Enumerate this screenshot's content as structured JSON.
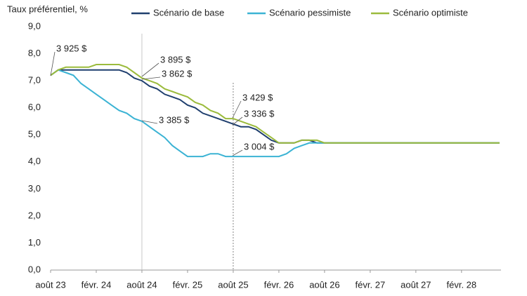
{
  "chart_data": {
    "type": "line",
    "y_axis_label": "Taux préférentiel, %",
    "categories": [
      "août 23",
      null,
      null,
      null,
      null,
      null,
      "févr. 24",
      null,
      null,
      null,
      null,
      null,
      "août 24",
      null,
      null,
      null,
      null,
      null,
      "févr. 25",
      null,
      null,
      null,
      null,
      null,
      "août 25",
      null,
      null,
      null,
      null,
      null,
      "févr. 26",
      null,
      null,
      null,
      null,
      null,
      "août 26",
      null,
      null,
      null,
      null,
      null,
      "févr. 27",
      null,
      null,
      null,
      null,
      null,
      "août 27",
      null,
      null,
      null,
      null,
      null,
      "févr. 28",
      null,
      null,
      null,
      null,
      null
    ],
    "series": [
      {
        "name": "Scénario de base",
        "color": "#1f3f6e",
        "values": [
          7.2,
          7.4,
          7.4,
          7.4,
          7.4,
          7.4,
          7.4,
          7.4,
          7.4,
          7.4,
          7.3,
          7.1,
          7.0,
          6.8,
          6.7,
          6.5,
          6.4,
          6.3,
          6.1,
          6.0,
          5.8,
          5.7,
          5.6,
          5.5,
          5.4,
          5.3,
          5.3,
          5.2,
          5.0,
          4.8,
          4.7,
          4.7,
          4.7,
          4.8,
          4.8,
          4.7,
          4.7,
          4.7,
          4.7,
          4.7,
          4.7,
          4.7,
          4.7,
          4.7,
          4.7,
          4.7,
          4.7,
          4.7,
          4.7,
          4.7,
          4.7,
          4.7,
          4.7,
          4.7,
          4.7,
          4.7,
          4.7,
          4.7,
          4.7,
          4.7
        ]
      },
      {
        "name": "Scénario pessimiste",
        "color": "#3bb3d4",
        "values": [
          7.2,
          7.4,
          7.3,
          7.2,
          6.9,
          6.7,
          6.5,
          6.3,
          6.1,
          5.9,
          5.8,
          5.6,
          5.5,
          5.3,
          5.1,
          4.9,
          4.6,
          4.4,
          4.2,
          4.2,
          4.2,
          4.3,
          4.3,
          4.2,
          4.2,
          4.2,
          4.2,
          4.2,
          4.2,
          4.2,
          4.2,
          4.3,
          4.5,
          4.6,
          4.7,
          4.7,
          4.7,
          4.7,
          4.7,
          4.7,
          4.7,
          4.7,
          4.7,
          4.7,
          4.7,
          4.7,
          4.7,
          4.7,
          4.7,
          4.7,
          4.7,
          4.7,
          4.7,
          4.7,
          4.7,
          4.7,
          4.7,
          4.7,
          4.7,
          4.7
        ]
      },
      {
        "name": "Scénario optimiste",
        "color": "#9bbb3c",
        "values": [
          7.2,
          7.4,
          7.5,
          7.5,
          7.5,
          7.5,
          7.6,
          7.6,
          7.6,
          7.6,
          7.5,
          7.3,
          7.1,
          7.0,
          6.9,
          6.7,
          6.6,
          6.5,
          6.4,
          6.2,
          6.1,
          5.9,
          5.8,
          5.6,
          5.6,
          5.5,
          5.4,
          5.3,
          5.1,
          4.9,
          4.7,
          4.7,
          4.7,
          4.8,
          4.8,
          4.8,
          4.7,
          4.7,
          4.7,
          4.7,
          4.7,
          4.7,
          4.7,
          4.7,
          4.7,
          4.7,
          4.7,
          4.7,
          4.7,
          4.7,
          4.7,
          4.7,
          4.7,
          4.7,
          4.7,
          4.7,
          4.7,
          4.7,
          4.7,
          4.7
        ]
      }
    ],
    "ylim": [
      0,
      9
    ],
    "yticks": [
      {
        "value": 0,
        "label": "0,0"
      },
      {
        "value": 1,
        "label": "1,0"
      },
      {
        "value": 2,
        "label": "2,0"
      },
      {
        "value": 3,
        "label": "3,0"
      },
      {
        "value": 4,
        "label": "4,0"
      },
      {
        "value": 5,
        "label": "5,0"
      },
      {
        "value": 6,
        "label": "6,0"
      },
      {
        "value": 7,
        "label": "7,0"
      },
      {
        "value": 8,
        "label": "8,0"
      },
      {
        "value": 9,
        "label": "9,0"
      }
    ],
    "grid": false,
    "legend": "top",
    "annotations": [
      "3 925 $",
      "3 895 $",
      "3 862 $",
      "3 385 $",
      "3 429 $",
      "3 336 $",
      "3 004 $"
    ]
  }
}
